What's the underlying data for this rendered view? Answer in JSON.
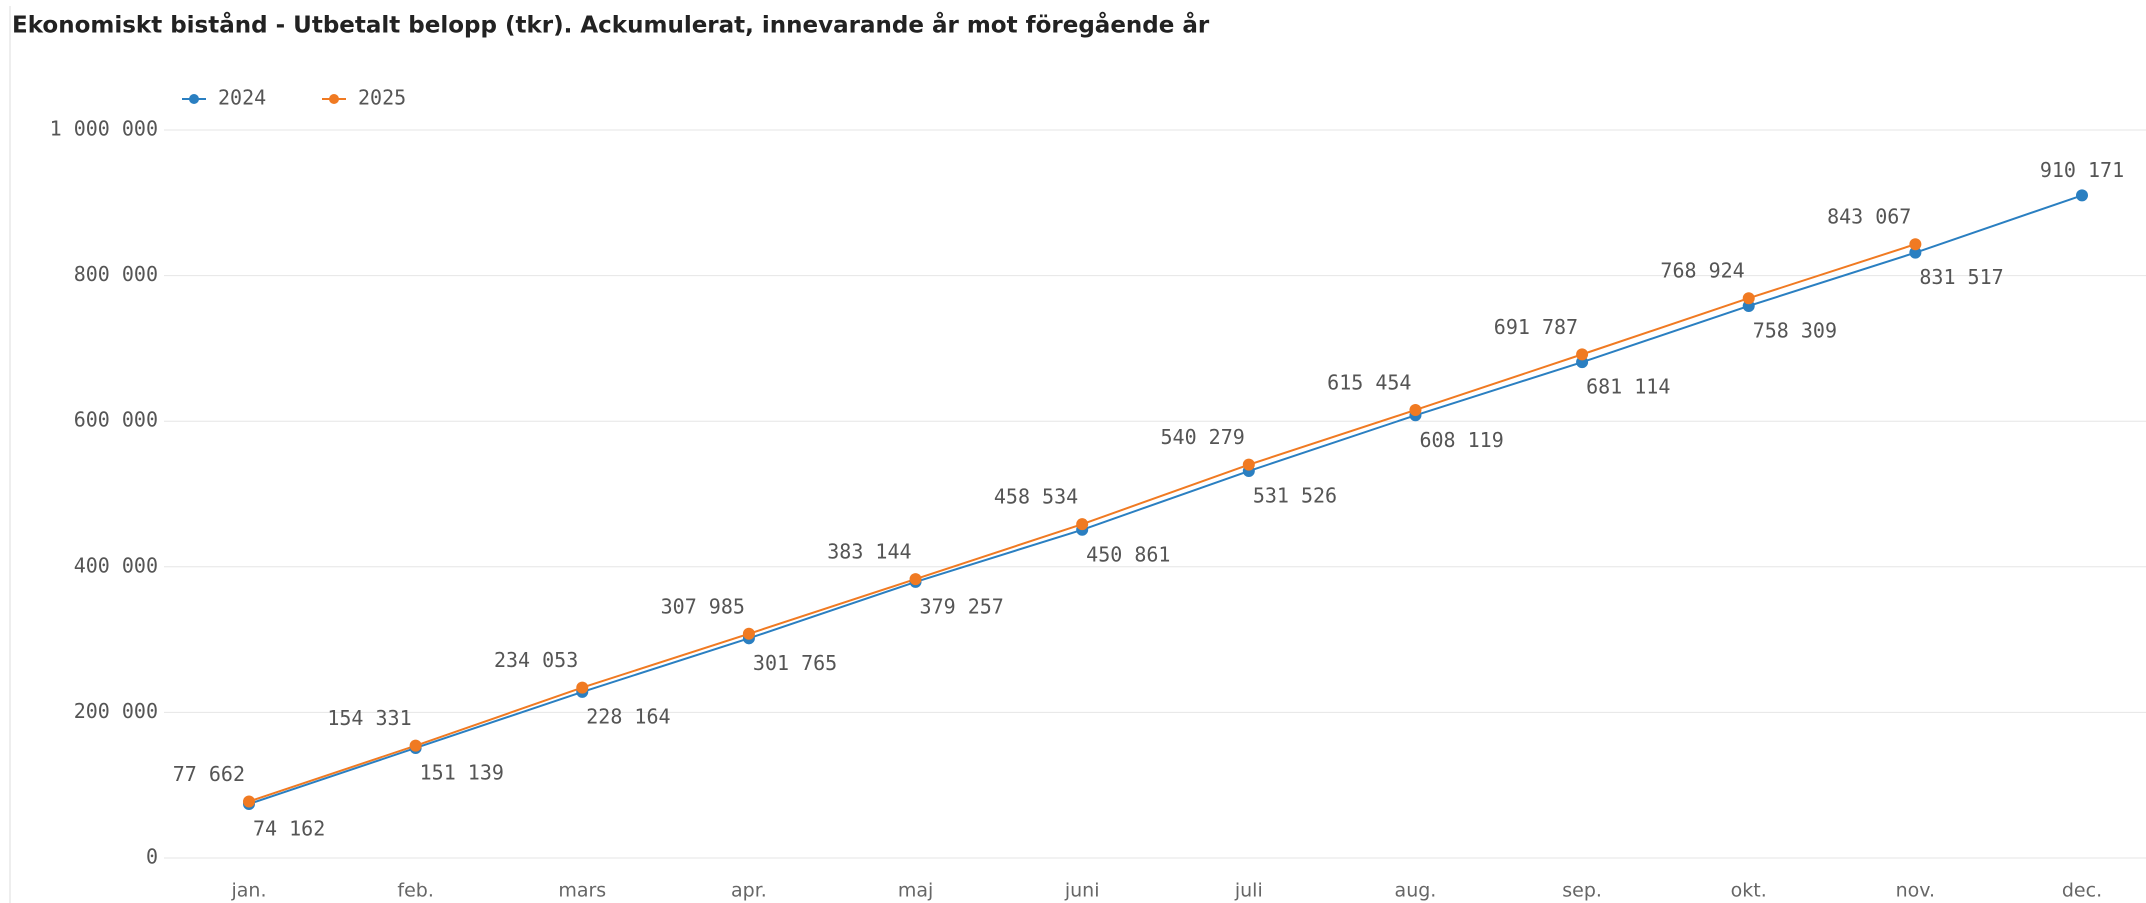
{
  "chart_data": {
    "type": "line",
    "title": "Ekonomiskt bistånd - Utbetalt belopp (tkr). Ackumulerat, innevarande år mot föregående år",
    "categories": [
      "jan.",
      "feb.",
      "mars",
      "apr.",
      "maj",
      "juni",
      "juli",
      "aug.",
      "sep.",
      "okt.",
      "nov.",
      "dec."
    ],
    "series": [
      {
        "name": "2024",
        "color": "#2a7fc1",
        "values": [
          74162,
          151139,
          228164,
          301765,
          379257,
          450861,
          531526,
          608119,
          681114,
          758309,
          831517,
          910171
        ],
        "value_labels": [
          "74 162",
          "151 139",
          "228 164",
          "301 765",
          "379 257",
          "450 861",
          "531 526",
          "608 119",
          "681 114",
          "758 309",
          "831 517",
          "910 171"
        ]
      },
      {
        "name": "2025",
        "color": "#f07a22",
        "values": [
          77662,
          154331,
          234053,
          307985,
          383144,
          458534,
          540279,
          615454,
          691787,
          768924,
          843067,
          null
        ],
        "value_labels": [
          "77 662",
          "154 331",
          "234 053",
          "307 985",
          "383 144",
          "458 534",
          "540 279",
          "615 454",
          "691 787",
          "768 924",
          "843 067",
          null
        ]
      }
    ],
    "ylim": [
      0,
      1000000
    ],
    "yticks": [
      0,
      {
        "value": 200000,
        "label": "200 000"
      },
      {
        "value": 400000,
        "label": "400 000"
      },
      {
        "value": 600000,
        "label": "600 000"
      },
      {
        "value": 800000,
        "label": "800 000"
      },
      {
        "value": 1000000,
        "label": "1 000 000"
      }
    ],
    "grid": true,
    "legend": "top-left"
  }
}
